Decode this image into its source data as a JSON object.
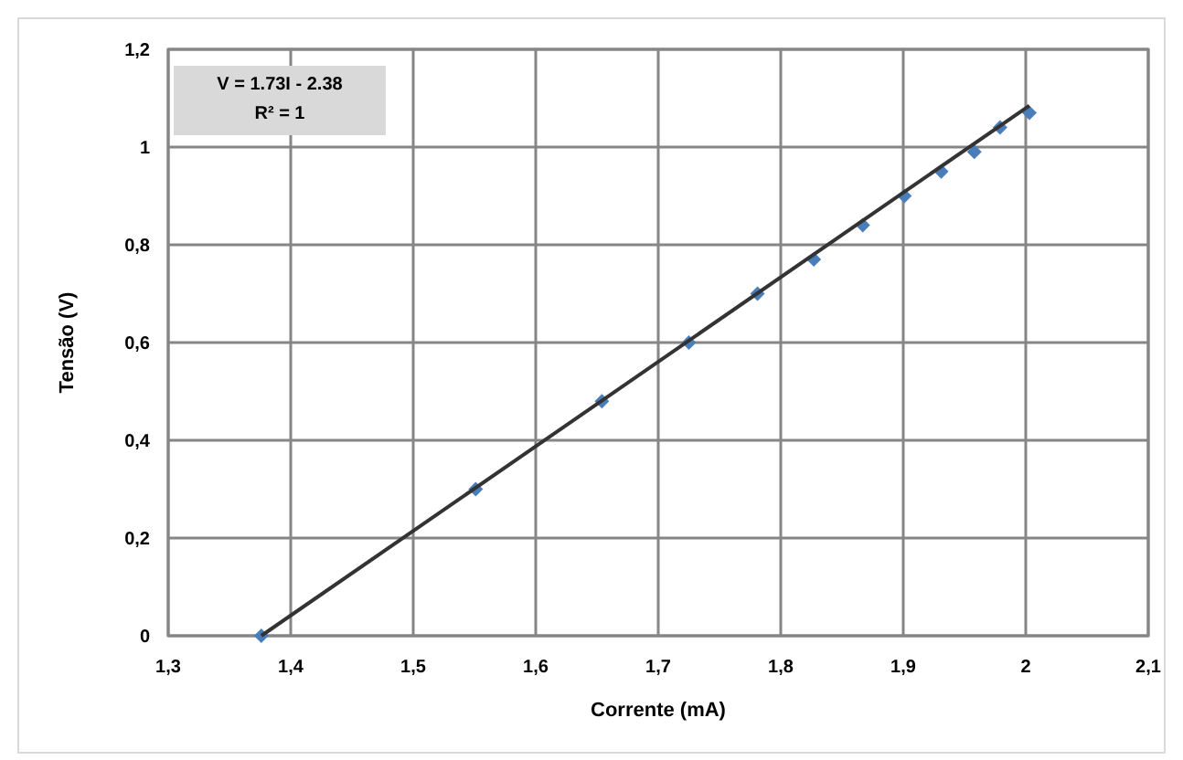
{
  "chart_data": {
    "type": "scatter",
    "xlabel": "Corrente (mA)",
    "ylabel": "Tensão (V)",
    "annotations": [
      "V = 1.73I - 2.38",
      "R² = 1"
    ],
    "series": [
      {
        "color": "#4a7ebb",
        "marker": "diamond",
        "x": [
          1.376,
          1.551,
          1.654,
          1.725,
          1.781,
          1.827,
          1.867,
          1.901,
          1.931,
          1.958,
          1.979,
          2.003
        ],
        "values": [
          0,
          0.3,
          0.48,
          0.6,
          0.7,
          0.77,
          0.84,
          0.9,
          0.95,
          0.99,
          1.04,
          1.07
        ]
      },
      {
        "type": "line",
        "color": "#333333",
        "marker": "none",
        "x": [
          1.376,
          2.003
        ],
        "values": [
          0,
          1.085
        ]
      }
    ],
    "xlim": [
      1.3,
      2.1
    ],
    "xticks": [
      {
        "value": 1.3,
        "label": "1,3"
      },
      {
        "value": 1.4,
        "label": "1,4"
      },
      {
        "value": 1.5,
        "label": "1,5"
      },
      {
        "value": 1.6,
        "label": "1,6"
      },
      {
        "value": 1.7,
        "label": "1,7"
      },
      {
        "value": 1.8,
        "label": "1,8"
      },
      {
        "value": 1.9,
        "label": "1,9"
      },
      2,
      {
        "value": 2.1,
        "label": "2,1"
      }
    ],
    "ylim": [
      0,
      1.2
    ],
    "yticks": [
      0,
      {
        "value": 0.2,
        "label": "0,2"
      },
      {
        "value": 0.4,
        "label": "0,4"
      },
      {
        "value": 0.6,
        "label": "0,6"
      },
      {
        "value": 0.8,
        "label": "0,8"
      },
      1,
      {
        "value": 1.2,
        "label": "1,2"
      }
    ],
    "grid": true
  }
}
